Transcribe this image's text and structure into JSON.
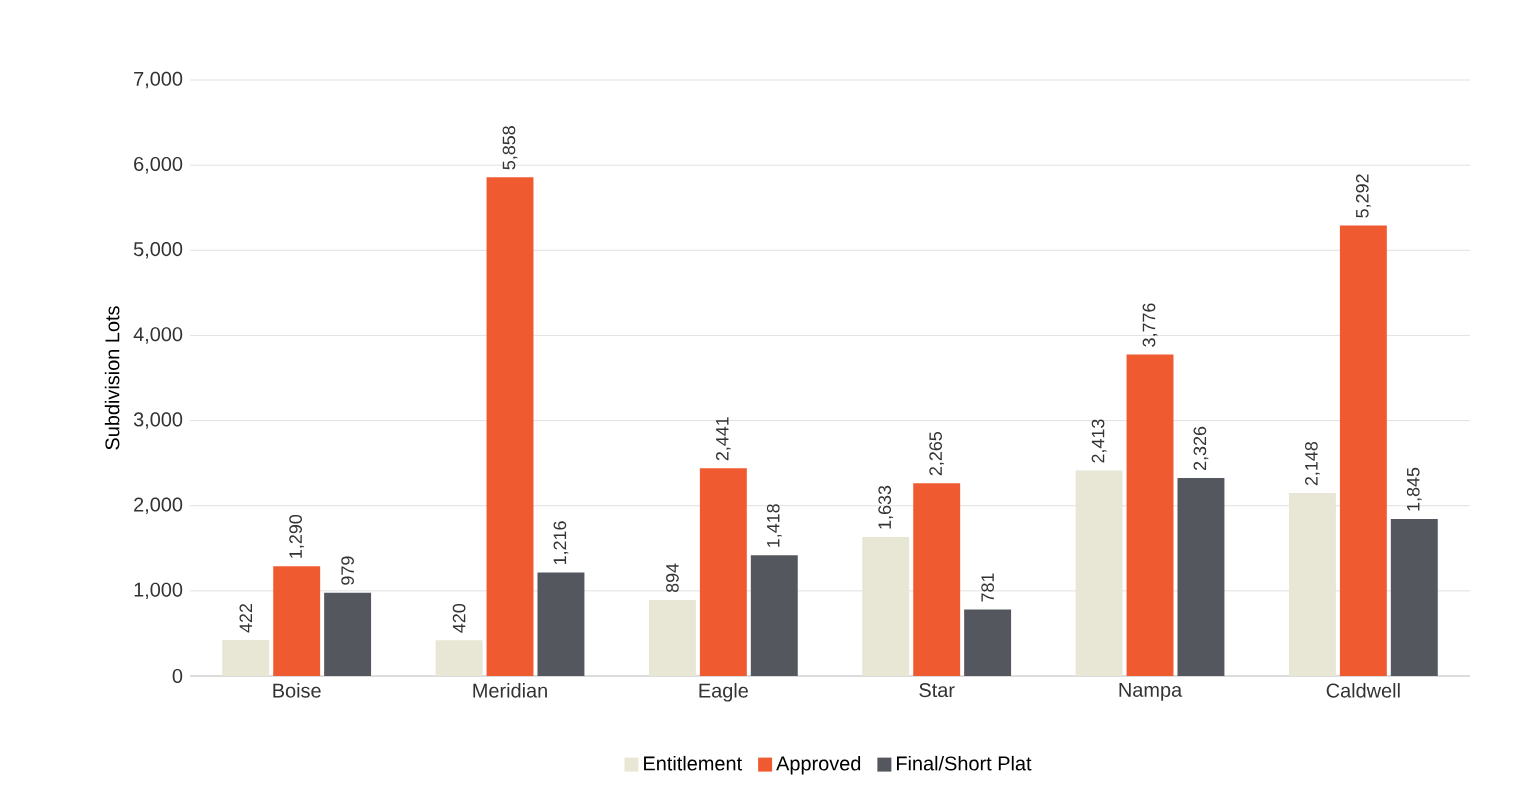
{
  "chart_data": {
    "type": "bar",
    "ylabel": "Subdivision Lots",
    "categories": [
      "Boise",
      "Meridian",
      "Eagle",
      "Star",
      "Nampa",
      "Caldwell"
    ],
    "series": [
      {
        "name": "Entitlement",
        "color": "#e8e6d5",
        "values": [
          422,
          420,
          894,
          1633,
          2413,
          2148
        ],
        "value_labels": [
          "422",
          "420",
          "894",
          "1,633",
          "2,413",
          "2,148"
        ]
      },
      {
        "name": "Approved",
        "color": "#f05a30",
        "values": [
          1290,
          5858,
          2441,
          2265,
          3776,
          5292
        ],
        "value_labels": [
          "1,290",
          "5,858",
          "2,441",
          "2,265",
          "3,776",
          "5,292"
        ]
      },
      {
        "name": "Final/Short Plat",
        "color": "#54575e",
        "values": [
          979,
          1216,
          1418,
          781,
          2326,
          1845
        ],
        "value_labels": [
          "979",
          "1,216",
          "1,418",
          "781",
          "2,326",
          "1,845"
        ]
      }
    ],
    "ylim": [
      0,
      7000
    ],
    "yticks": [
      {
        "value": 0,
        "label": "0"
      },
      {
        "value": 1000,
        "label": "1,000"
      },
      {
        "value": 2000,
        "label": "2,000"
      },
      {
        "value": 3000,
        "label": "3,000"
      },
      {
        "value": 4000,
        "label": "4,000"
      },
      {
        "value": 5000,
        "label": "5,000"
      },
      {
        "value": 6000,
        "label": "6,000"
      },
      {
        "value": 7000,
        "label": "7,000"
      }
    ],
    "grid": "y",
    "legend": "bottom"
  }
}
